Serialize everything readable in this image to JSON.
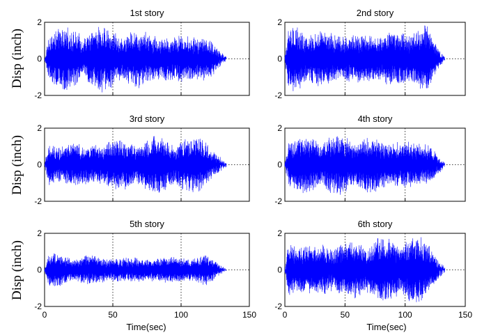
{
  "figure": {
    "ylabel": "Disp (inch)",
    "xlabel": "Time(sec)"
  },
  "chart_data": [
    {
      "type": "line",
      "title": "1st story",
      "xlabel": "",
      "ylabel": "Disp (inch)",
      "xlim": [
        0,
        150
      ],
      "ylim": [
        -2,
        2
      ],
      "xticks": [],
      "yticks": [
        "-2",
        "0",
        "2"
      ],
      "grid": true,
      "color": "#0000ff",
      "series": [
        {
          "x_range": [
            0,
            133
          ],
          "approx_peak_amplitude": 1.9,
          "amplitude_envelope": "bursts, fading to 0 near 130 s"
        }
      ]
    },
    {
      "type": "line",
      "title": "2nd story",
      "xlabel": "",
      "ylabel": "",
      "xlim": [
        0,
        150
      ],
      "ylim": [
        -2,
        2
      ],
      "xticks": [],
      "yticks": [
        "-2",
        "0",
        "2"
      ],
      "grid": true,
      "color": "#0000ff",
      "series": [
        {
          "x_range": [
            0,
            133
          ],
          "approx_peak_amplitude": 2.0,
          "amplitude_envelope": "bursts, fading to 0 near 130 s"
        }
      ]
    },
    {
      "type": "line",
      "title": "3rd story",
      "xlabel": "",
      "ylabel": "Disp (inch)",
      "xlim": [
        0,
        150
      ],
      "ylim": [
        -2,
        2
      ],
      "xticks": [],
      "yticks": [
        "-2",
        "0",
        "2"
      ],
      "grid": true,
      "color": "#0000ff",
      "series": [
        {
          "x_range": [
            0,
            133
          ],
          "approx_peak_amplitude": 1.7,
          "amplitude_envelope": "bursts, fading to 0 near 130 s"
        }
      ]
    },
    {
      "type": "line",
      "title": "4th story",
      "xlabel": "",
      "ylabel": "",
      "xlim": [
        0,
        150
      ],
      "ylim": [
        -2,
        2
      ],
      "xticks": [],
      "yticks": [
        "-2",
        "0",
        "2"
      ],
      "grid": true,
      "color": "#0000ff",
      "series": [
        {
          "x_range": [
            0,
            133
          ],
          "approx_peak_amplitude": 1.8,
          "amplitude_envelope": "bursts, fading to 0 near 130 s"
        }
      ]
    },
    {
      "type": "line",
      "title": "5th story",
      "xlabel": "Time(sec)",
      "ylabel": "Disp (inch)",
      "xlim": [
        0,
        150
      ],
      "ylim": [
        -2,
        2
      ],
      "xticks": [
        "0",
        "50",
        "100",
        "150"
      ],
      "yticks": [
        "-2",
        "0",
        "2"
      ],
      "grid": true,
      "color": "#0000ff",
      "series": [
        {
          "x_range": [
            0,
            133
          ],
          "approx_peak_amplitude": 1.0,
          "amplitude_envelope": "bursts, fading to 0 near 130 s"
        }
      ]
    },
    {
      "type": "line",
      "title": "6th story",
      "xlabel": "Time(sec)",
      "ylabel": "",
      "xlim": [
        0,
        150
      ],
      "ylim": [
        -2,
        2
      ],
      "xticks": [
        "0",
        "50",
        "100",
        "150"
      ],
      "yticks": [
        "-2",
        "0",
        "2"
      ],
      "grid": true,
      "color": "#0000ff",
      "series": [
        {
          "x_range": [
            0,
            133
          ],
          "approx_peak_amplitude": 2.0,
          "amplitude_envelope": "bursts, fading to 0 near 130 s"
        }
      ]
    }
  ]
}
